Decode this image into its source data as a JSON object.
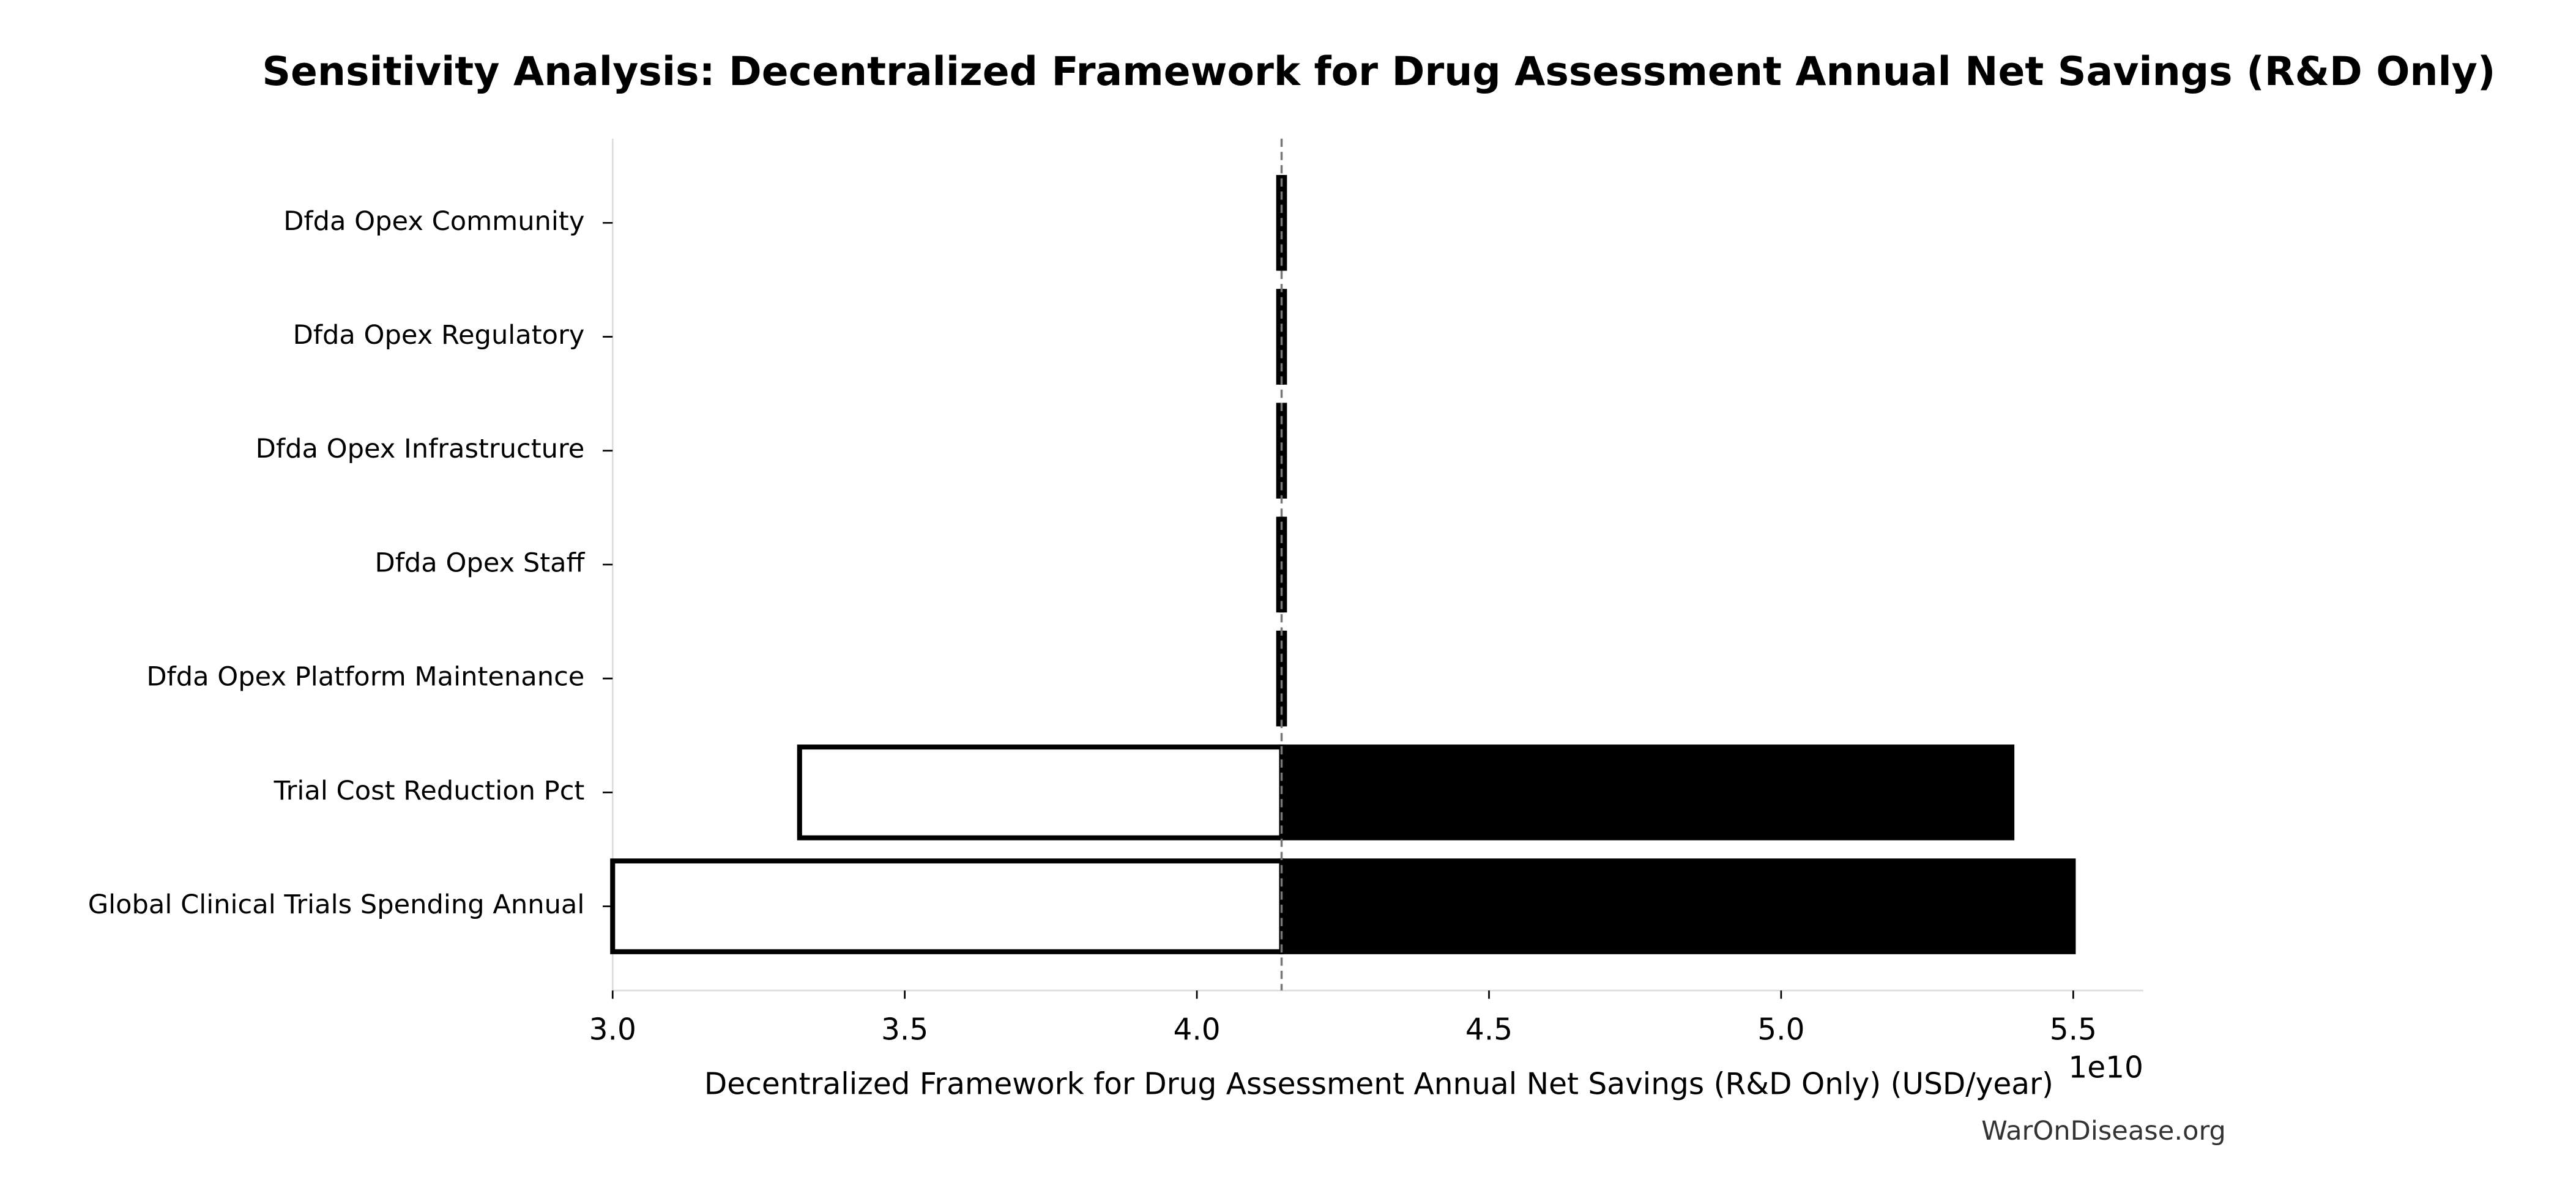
{
  "chart_data": {
    "type": "tornado",
    "title": "Sensitivity Analysis: Decentralized Framework for Drug Assessment Annual Net Savings (R&D Only)",
    "xlabel": "Decentralized Framework for Drug Assessment Annual Net Savings (R&D Only) (USD/year)",
    "x_offset_label": "1e10",
    "watermark": "WarOnDisease.org",
    "categories": [
      "Dfda Opex Community",
      "Dfda Opex Regulatory",
      "Dfda Opex Infrastructure",
      "Dfda Opex Staff",
      "Dfda Opex Platform Maintenance",
      "Trial Cost Reduction Pct",
      "Global Clinical Trials Spending Annual"
    ],
    "baseline": 41450000000,
    "low_values": [
      41400000000,
      41400000000,
      41400000000,
      41400000000,
      41400000000,
      33200000000,
      30000000000
    ],
    "high_values": [
      41500000000,
      41500000000,
      41500000000,
      41500000000,
      41500000000,
      53950000000,
      55000000000
    ],
    "low_color": "#ffffff",
    "high_color": "#000000",
    "xlim": [
      30000000000,
      56200000000
    ],
    "xticks": [
      {
        "value": 30000000000,
        "label": "3.0"
      },
      {
        "value": 35000000000,
        "label": "3.5"
      },
      {
        "value": 40000000000,
        "label": "4.0"
      },
      {
        "value": 45000000000,
        "label": "4.5"
      },
      {
        "value": 50000000000,
        "label": "5.0"
      },
      {
        "value": 55000000000,
        "label": "5.5"
      }
    ]
  }
}
